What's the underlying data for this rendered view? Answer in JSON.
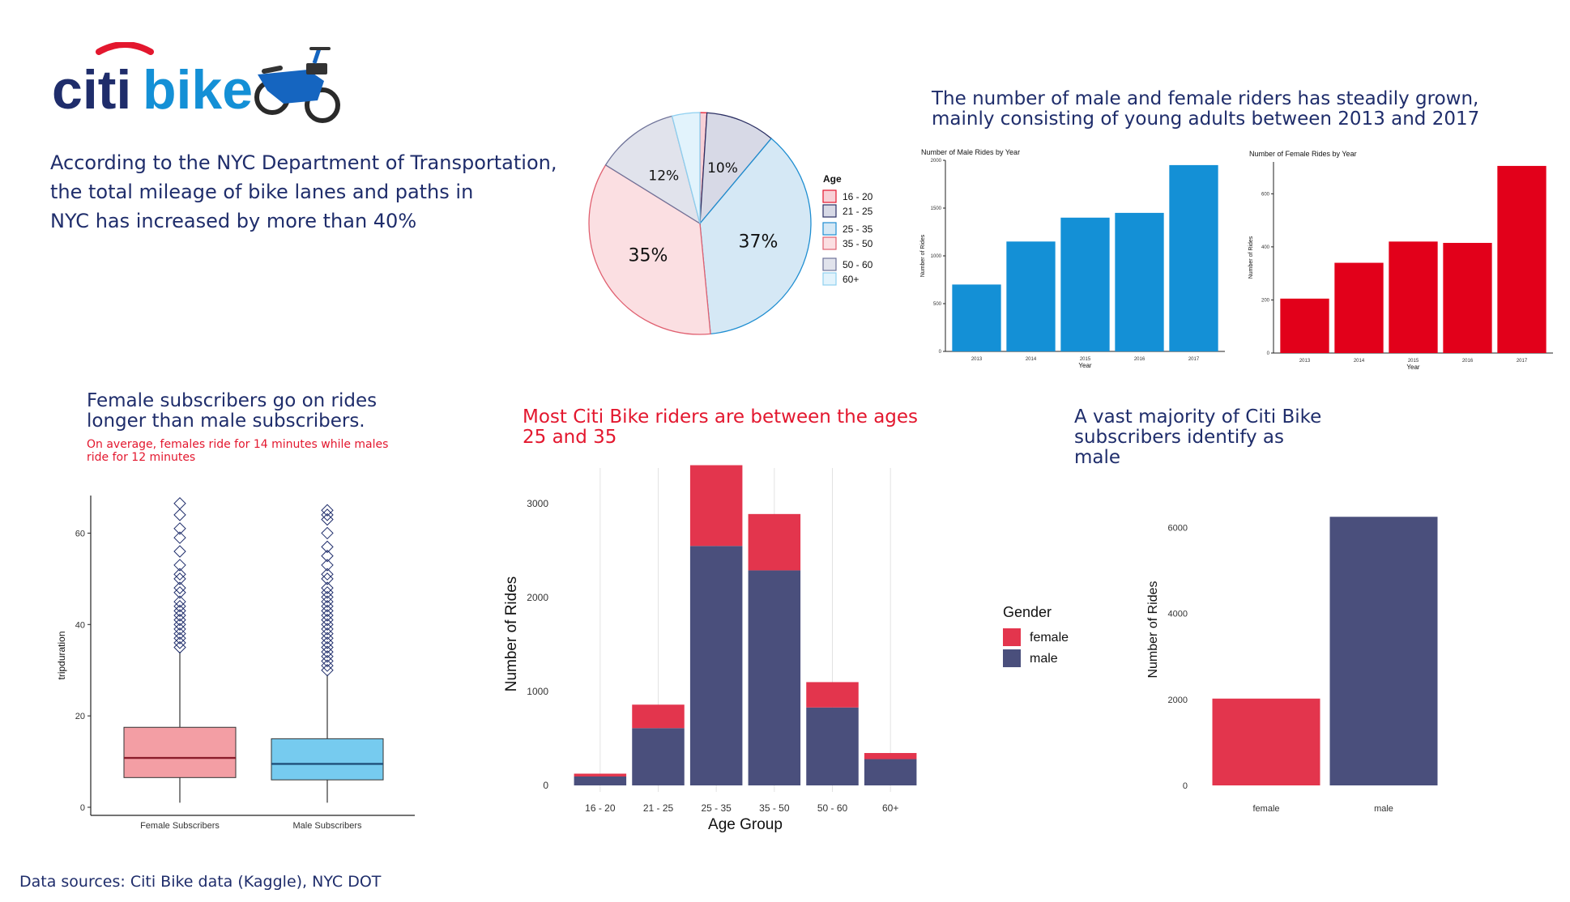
{
  "logo": {
    "word_left": "citi",
    "word_right": "bike"
  },
  "intro_text": "According to the NYC Department of Transportation, the total mileage of bike lanes and paths in NYC has increased by more than 40%",
  "intro_lines": [
    "According to the NYC Department of Transportation,",
    "the total mileage of bike lanes and paths in",
    "NYC has increased by more than 40%"
  ],
  "growth_headline": [
    "The number of male and female riders has steadily grown,",
    "mainly consisting of young adults between 2013 and 2017"
  ],
  "boxplot_headline": [
    "Female subscribers go on rides",
    "longer than male subscribers."
  ],
  "boxplot_subtext": [
    "On average, females ride for 14 minutes while males",
    "ride for 12 minutes"
  ],
  "age_headline": [
    "Most Citi Bike riders are between the ages",
    "25 and 35"
  ],
  "gender_headline": [
    "A vast majority of Citi Bike",
    "subscribers identify as",
    "male"
  ],
  "footer": "Data sources: Citi Bike data (Kaggle), NYC DOT",
  "colors": {
    "navy": "#1f2d6b",
    "red": "#e3172e",
    "blue": "#1490d6",
    "female": "#e3354d",
    "male": "#4a4f7c",
    "box_female": "#f39ea4",
    "box_male": "#76cbef"
  },
  "chart_data": [
    {
      "id": "age_pie",
      "type": "pie",
      "legend_title": "Age",
      "legend_placement": "right",
      "slices": [
        {
          "label": "16 - 20",
          "value": 1,
          "display": "",
          "fill": "#f8d0d6",
          "stroke": "#e3172e"
        },
        {
          "label": "21 - 25",
          "value": 10,
          "display": "10%",
          "fill": "#d7d9e6",
          "stroke": "#2b2f63"
        },
        {
          "label": "25 - 35",
          "value": 37,
          "display": "37%",
          "fill": "#d5e8f5",
          "stroke": "#1f8ed1"
        },
        {
          "label": "35 - 50",
          "value": 35,
          "display": "35%",
          "fill": "#fbdfe2",
          "stroke": "#e06070"
        },
        {
          "label": "50 - 60",
          "value": 12,
          "display": "12%",
          "fill": "#e1e3ec",
          "stroke": "#6f7399"
        },
        {
          "label": "60+",
          "value": 4,
          "display": "",
          "fill": "#e2f3fc",
          "stroke": "#8fd0f0"
        }
      ]
    },
    {
      "id": "male_rides",
      "type": "bar",
      "title": "Number of Male Rides by Year",
      "xlabel": "Year",
      "ylabel": "Number of Rides",
      "categories": [
        "2013",
        "2014",
        "2015",
        "2016",
        "2017"
      ],
      "values": [
        700,
        1150,
        1400,
        1450,
        1950
      ],
      "ylim": [
        0,
        2000
      ],
      "yticks": [
        0,
        500,
        1000,
        1500,
        2000
      ],
      "color": "#1490d6"
    },
    {
      "id": "female_rides",
      "type": "bar",
      "title": "Number of Female Rides by Year",
      "xlabel": "Year",
      "ylabel": "Number of Rides",
      "categories": [
        "2013",
        "2014",
        "2015",
        "2016",
        "2017"
      ],
      "values": [
        205,
        340,
        420,
        415,
        705
      ],
      "ylim": [
        0,
        720
      ],
      "yticks": [
        0,
        200,
        400,
        600
      ],
      "color": "#e2001a"
    },
    {
      "id": "trip_duration",
      "type": "box",
      "ylabel": "tripduration",
      "ylim": [
        0,
        70
      ],
      "yticks": [
        0,
        20,
        40,
        60
      ],
      "groups": [
        {
          "label": "Female Subscribers",
          "q1": 6.5,
          "median": 10.8,
          "q3": 17.5,
          "whisker_low": 1,
          "whisker_high": 34,
          "outliers": [
            35,
            36,
            37,
            38,
            39,
            40,
            41,
            42,
            43,
            44,
            45,
            47,
            48,
            50,
            51,
            53,
            56,
            59,
            61,
            64,
            66.5
          ],
          "fill": "#f39ea4",
          "line": "#8a1c2b"
        },
        {
          "label": "Male Subscribers",
          "q1": 6,
          "median": 9.5,
          "q3": 15,
          "whisker_low": 1,
          "whisker_high": 29,
          "outliers": [
            30,
            31,
            32,
            33,
            34,
            35,
            36,
            37,
            38,
            39,
            40,
            41,
            42,
            43,
            44,
            45,
            46,
            47,
            48,
            50,
            51,
            53,
            55,
            57,
            60,
            63,
            64,
            65
          ],
          "fill": "#76cbef",
          "line": "#1f4f7a"
        }
      ]
    },
    {
      "id": "age_gender",
      "type": "bar",
      "stacked": true,
      "xlabel": "Age Group",
      "ylabel": "Number of Rides",
      "legend_title": "Gender",
      "legend_placement": "right",
      "categories": [
        "16 - 20",
        "21 - 25",
        "25 - 35",
        "35 - 50",
        "50 - 60",
        "60+"
      ],
      "series": [
        {
          "name": "male",
          "values": [
            95,
            610,
            2550,
            2290,
            830,
            280
          ],
          "color": "#4a4f7c"
        },
        {
          "name": "female",
          "values": [
            30,
            250,
            860,
            600,
            270,
            65
          ],
          "color": "#e3354d"
        }
      ],
      "ylim": [
        0,
        3500
      ],
      "yticks": [
        0,
        1000,
        2000,
        3000
      ]
    },
    {
      "id": "gender_rides",
      "type": "bar",
      "xlabel": "",
      "ylabel": "Number of Rides",
      "categories": [
        "female",
        "male"
      ],
      "values": [
        2020,
        6250
      ],
      "colors": [
        "#e3354d",
        "#4a4f7c"
      ],
      "ylim": [
        0,
        6500
      ],
      "yticks": [
        0,
        2000,
        4000,
        6000
      ]
    }
  ]
}
